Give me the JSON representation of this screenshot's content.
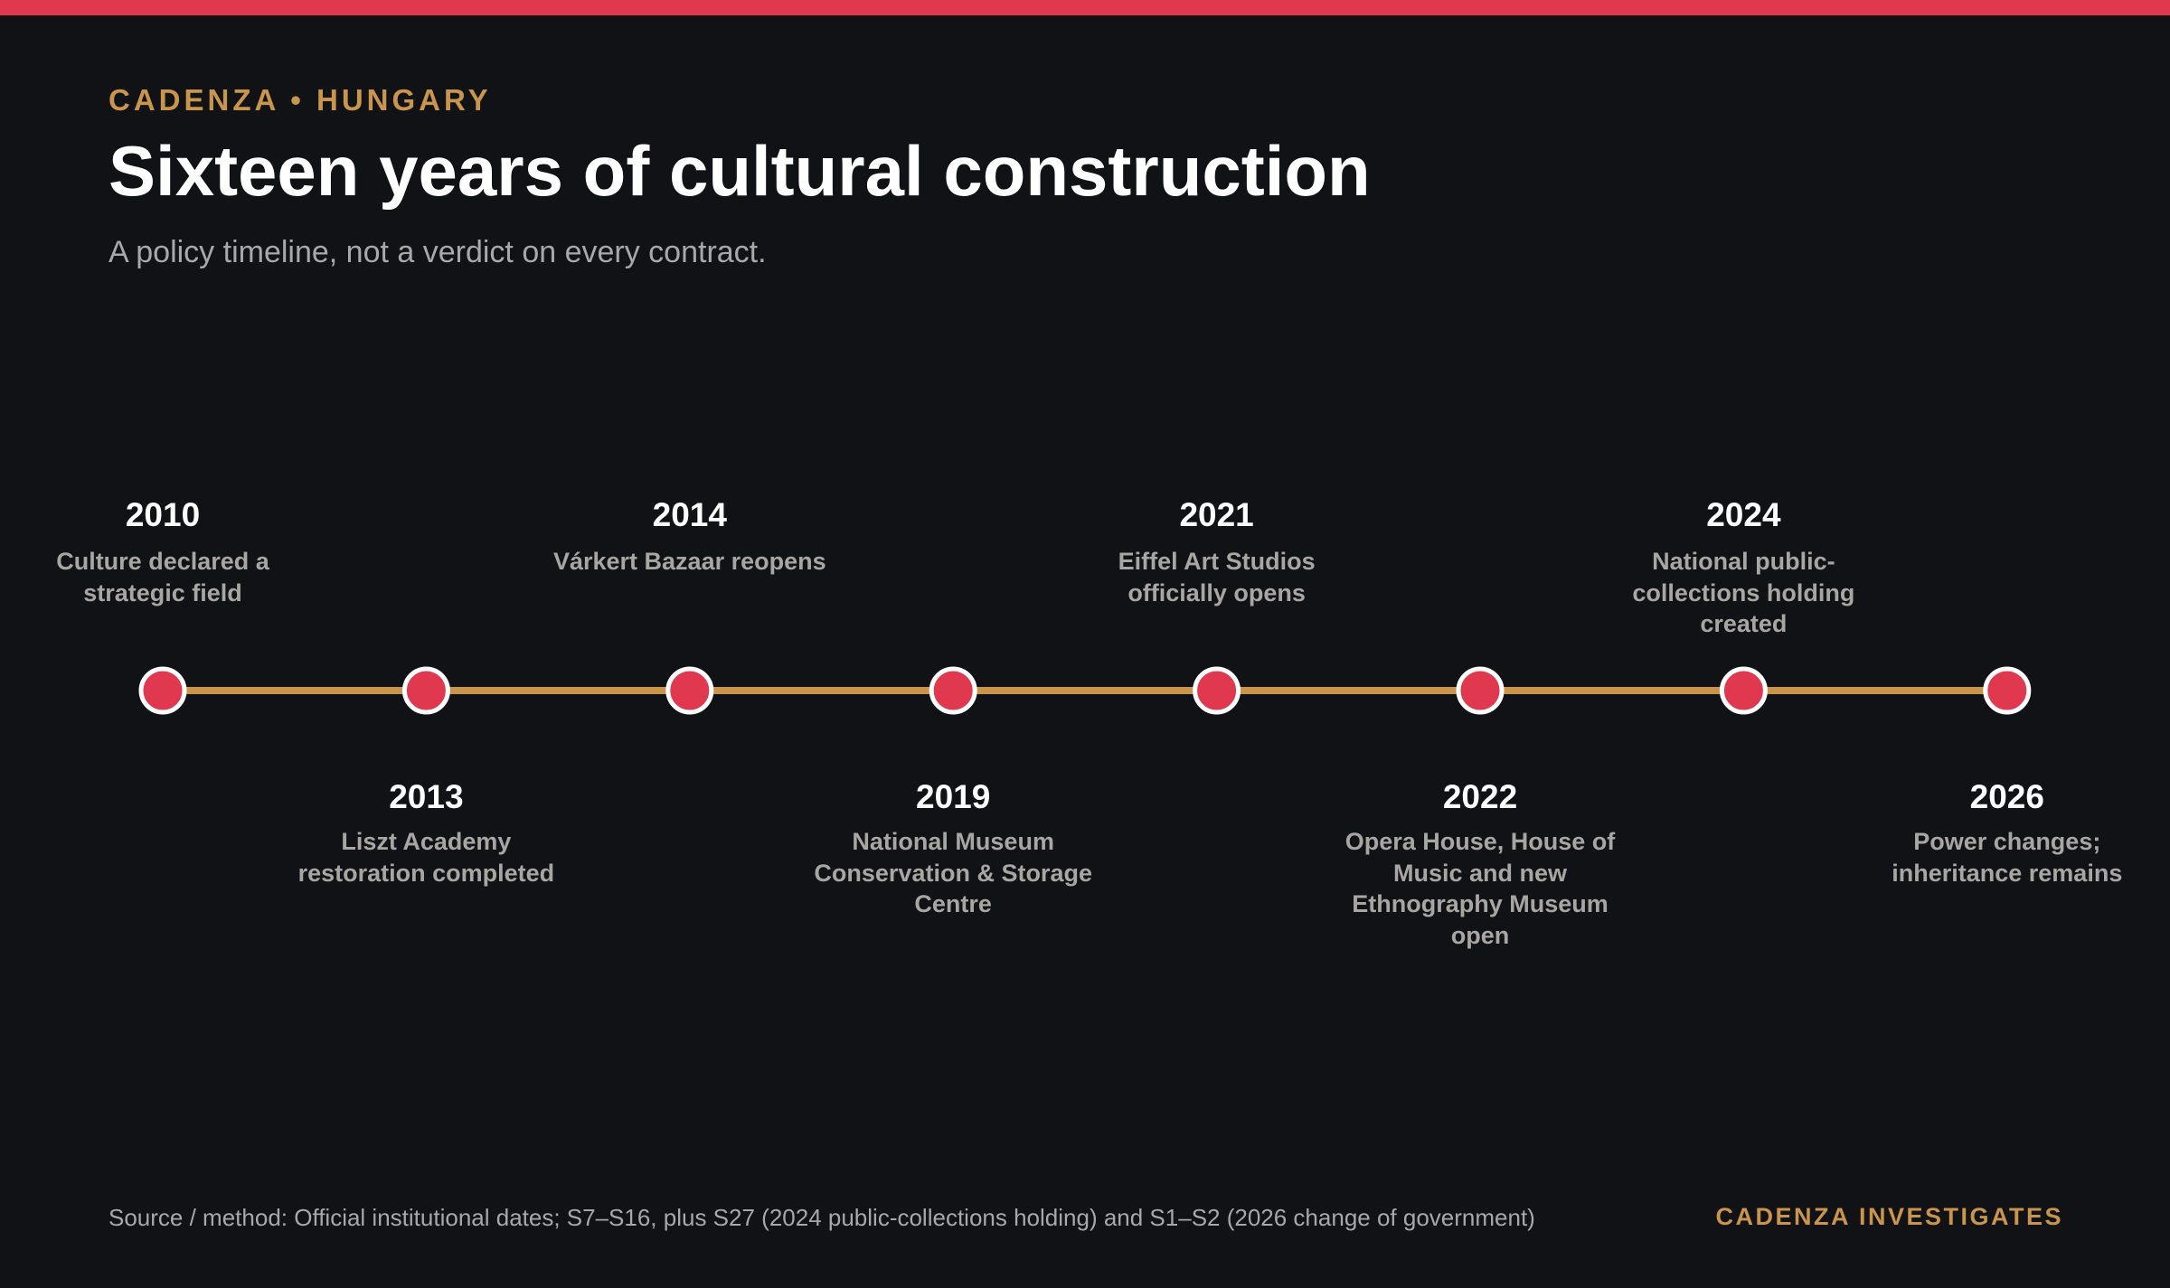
{
  "header": {
    "kicker": "CADENZA • HUNGARY",
    "title": "Sixteen years of cultural construction",
    "subtitle": "A policy timeline, not a verdict on every contract."
  },
  "colors": {
    "accent": "#e0394f",
    "gold": "#c9954c",
    "background": "#111216",
    "node_stroke": "#ffffff"
  },
  "timeline": {
    "events": [
      {
        "year": "2010",
        "label": "Culture declared a strategic field"
      },
      {
        "year": "2013",
        "label": "Liszt Academy restoration completed"
      },
      {
        "year": "2014",
        "label": "Várkert Bazaar reopens"
      },
      {
        "year": "2019",
        "label": "National Museum Conservation & Storage Centre"
      },
      {
        "year": "2021",
        "label": "Eiffel Art Studios officially opens"
      },
      {
        "year": "2022",
        "label": "Opera House, House of Music and new Ethnography Museum open"
      },
      {
        "year": "2024",
        "label": "National public-collections holding created"
      },
      {
        "year": "2026",
        "label": "Power changes; inheritance remains"
      }
    ]
  },
  "footer": {
    "source": "Source / method: Official institutional dates; S7–S16, plus S27 (2024 public-collections holding) and S1–S2 (2026 change of government)",
    "brand": "CADENZA INVESTIGATES"
  }
}
